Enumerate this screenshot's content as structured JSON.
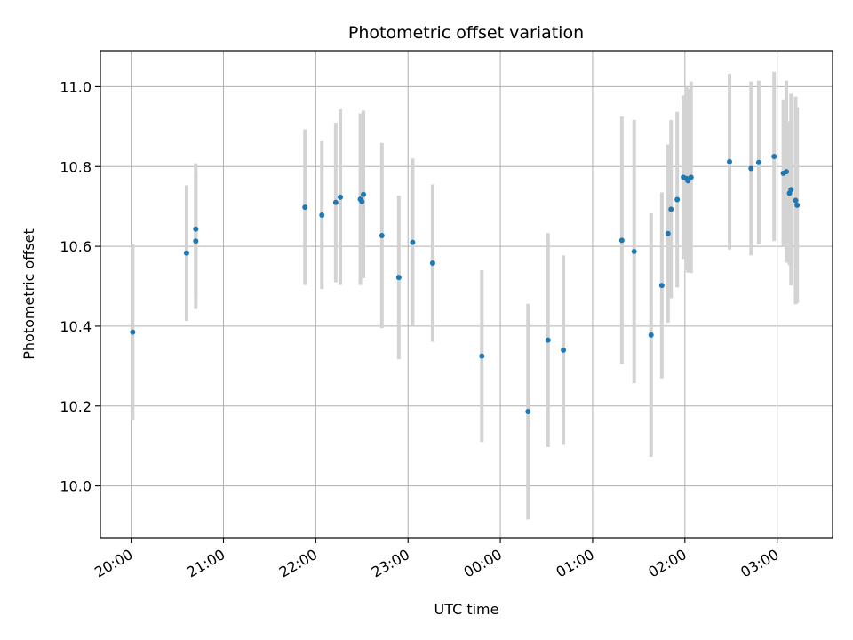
{
  "chart_data": {
    "type": "scatter",
    "title": "Photometric offset variation",
    "xlabel": "UTC time",
    "ylabel": "Photometric offset",
    "x_unit": "UTC time (HH:MM)",
    "xlim": [
      "19:40",
      "03:36"
    ],
    "ylim": [
      9.87,
      11.09
    ],
    "x_ticks": [
      "20:00",
      "21:00",
      "22:00",
      "23:00",
      "00:00",
      "01:00",
      "02:00",
      "03:00"
    ],
    "y_ticks": [
      "10.0",
      "10.2",
      "10.4",
      "10.6",
      "10.8",
      "11.0"
    ],
    "grid": true,
    "marker_color": "#1f77b4",
    "errorbar_color": "#d3d3d3",
    "series": [
      {
        "points": [
          {
            "x": "20:01",
            "y": 10.385,
            "err": 0.22
          },
          {
            "x": "20:36",
            "y": 10.583,
            "err": 0.17
          },
          {
            "x": "20:42",
            "y": 10.643,
            "err": 0.165
          },
          {
            "x": "20:42",
            "y": 10.613,
            "err": 0.17
          },
          {
            "x": "21:53",
            "y": 10.698,
            "err": 0.195
          },
          {
            "x": "22:04",
            "y": 10.678,
            "err": 0.185
          },
          {
            "x": "22:13",
            "y": 10.71,
            "err": 0.2
          },
          {
            "x": "22:16",
            "y": 10.723,
            "err": 0.22
          },
          {
            "x": "22:29",
            "y": 10.718,
            "err": 0.215
          },
          {
            "x": "22:30",
            "y": 10.712,
            "err": 0.19
          },
          {
            "x": "22:31",
            "y": 10.73,
            "err": 0.21
          },
          {
            "x": "22:43",
            "y": 10.627,
            "err": 0.232
          },
          {
            "x": "22:54",
            "y": 10.522,
            "err": 0.205
          },
          {
            "x": "23:03",
            "y": 10.61,
            "err": 0.21
          },
          {
            "x": "23:16",
            "y": 10.558,
            "err": 0.197
          },
          {
            "x": "23:48",
            "y": 10.325,
            "err": 0.215
          },
          {
            "x": "00:18",
            "y": 10.186,
            "err": 0.27
          },
          {
            "x": "00:31",
            "y": 10.365,
            "err": 0.268
          },
          {
            "x": "00:41",
            "y": 10.34,
            "err": 0.237
          },
          {
            "x": "01:19",
            "y": 10.615,
            "err": 0.31
          },
          {
            "x": "01:27",
            "y": 10.587,
            "err": 0.33
          },
          {
            "x": "01:38",
            "y": 10.378,
            "err": 0.305
          },
          {
            "x": "01:45",
            "y": 10.502,
            "err": 0.233
          },
          {
            "x": "01:49",
            "y": 10.632,
            "err": 0.223
          },
          {
            "x": "01:51",
            "y": 10.693,
            "err": 0.223
          },
          {
            "x": "01:55",
            "y": 10.717,
            "err": 0.22
          },
          {
            "x": "01:59",
            "y": 10.773,
            "err": 0.205
          },
          {
            "x": "02:01",
            "y": 10.77,
            "err": 0.23
          },
          {
            "x": "02:02",
            "y": 10.764,
            "err": 0.23
          },
          {
            "x": "02:04",
            "y": 10.773,
            "err": 0.24
          },
          {
            "x": "02:29",
            "y": 10.812,
            "err": 0.22
          },
          {
            "x": "02:43",
            "y": 10.795,
            "err": 0.218
          },
          {
            "x": "02:48",
            "y": 10.81,
            "err": 0.205
          },
          {
            "x": "02:58",
            "y": 10.825,
            "err": 0.212
          },
          {
            "x": "03:04",
            "y": 10.783,
            "err": 0.185
          },
          {
            "x": "03:06",
            "y": 10.787,
            "err": 0.228
          },
          {
            "x": "03:08",
            "y": 10.733,
            "err": 0.18
          },
          {
            "x": "03:09",
            "y": 10.742,
            "err": 0.24
          },
          {
            "x": "03:12",
            "y": 10.715,
            "err": 0.26
          },
          {
            "x": "03:13",
            "y": 10.703,
            "err": 0.245
          }
        ]
      }
    ]
  }
}
